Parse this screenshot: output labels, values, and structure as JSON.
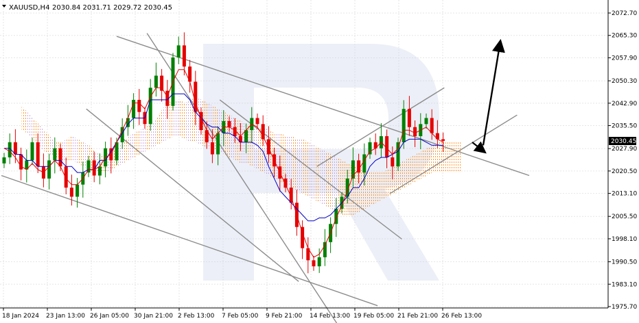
{
  "header": {
    "symbol": "XAUUSD,H4",
    "ohlc": "2030.84 2031.71 2029.72 2030.45"
  },
  "colors": {
    "bull": "#008000",
    "bear": "#e60000",
    "tenkan": "#e60000",
    "kijun": "#0000c8",
    "kumo_bull": "#ff8c1a",
    "kumo_bear": "#c8a0d8",
    "trendline": "#8c8c8c",
    "arrow": "#000000",
    "price_tag_bg": "#000000",
    "watermark": "#c8d2e8"
  },
  "chart_data": {
    "type": "candlestick",
    "symbol": "XAUUSD",
    "timeframe": "H4",
    "last_price": "2030.45",
    "y_ticks": [
      "2072.70",
      "2065.30",
      "2057.90",
      "2050.30",
      "2042.90",
      "2035.50",
      "2027.90",
      "2020.50",
      "2013.10",
      "2005.50",
      "1998.10",
      "1990.50",
      "1983.10",
      "1975.70"
    ],
    "ylim": [
      1975.7,
      2072.7
    ],
    "x_ticks": [
      "18 Jan 2024",
      "23 Jan 13:00",
      "26 Jan 05:00",
      "30 Jan 21:00",
      "2 Feb 13:00",
      "7 Feb 05:00",
      "9 Feb 21:00",
      "14 Feb 13:00",
      "19 Feb 05:00",
      "21 Feb 21:00",
      "26 Feb 13:00"
    ],
    "close_path": [
      2025,
      2030,
      2026,
      2021,
      2024,
      2030,
      2022,
      2018,
      2024,
      2028,
      2022,
      2015,
      2012,
      2016,
      2020,
      2024,
      2019,
      2022,
      2028,
      2024,
      2030,
      2035,
      2038,
      2044,
      2040,
      2036,
      2048,
      2052,
      2047,
      2042,
      2058,
      2062,
      2055,
      2050,
      2040,
      2034,
      2030,
      2026,
      2033,
      2037,
      2035,
      2032,
      2030,
      2034,
      2038,
      2036,
      2031,
      2026,
      2022,
      2018,
      2015,
      2010,
      2002,
      1995,
      1991,
      1989,
      1992,
      1997,
      2003,
      2008,
      2012,
      2018,
      2024,
      2020,
      2026,
      2030,
      2028,
      2032,
      2025,
      2022,
      2030,
      2041,
      2035,
      2032,
      2036,
      2038,
      2033,
      2031,
      2030.45
    ],
    "tenkan_path": [
      2028,
      2027,
      2025,
      2022,
      2021,
      2023,
      2021,
      2020,
      2022,
      2024,
      2022,
      2018,
      2016,
      2016,
      2018,
      2021,
      2021,
      2022,
      2025,
      2026,
      2030,
      2034,
      2038,
      2043,
      2043,
      2041,
      2045,
      2048,
      2048,
      2045,
      2050,
      2054,
      2054,
      2050,
      2043,
      2038,
      2034,
      2031,
      2033,
      2035,
      2035,
      2034,
      2032,
      2034,
      2036,
      2035,
      2032,
      2028,
      2024,
      2020,
      2016,
      2012,
      2006,
      2000,
      1995,
      1992,
      1993,
      1996,
      2000,
      2005,
      2009,
      2014,
      2019,
      2021,
      2024,
      2027,
      2028,
      2030,
      2028,
      2026,
      2028,
      2034,
      2034,
      2033,
      2034,
      2035,
      2033,
      2031,
      2030
    ],
    "kijun_path": [
      2028,
      2028,
      2026,
      2026,
      2024,
      2024,
      2022,
      2022,
      2022,
      2024,
      2024,
      2022,
      2022,
      2020,
      2020,
      2021,
      2021,
      2024,
      2024,
      2027,
      2030,
      2033,
      2036,
      2038,
      2038,
      2038,
      2044,
      2044,
      2044,
      2044,
      2046,
      2046,
      2046,
      2044,
      2040,
      2038,
      2036,
      2035,
      2035,
      2033,
      2033,
      2032,
      2030,
      2030,
      2030,
      2029,
      2027,
      2022,
      2018,
      2014,
      2012,
      2010,
      2008,
      2006,
      2004,
      2004,
      2005,
      2005,
      2006,
      2008,
      2010,
      2012,
      2015,
      2015,
      2018,
      2022,
      2024,
      2025,
      2025,
      2026,
      2027,
      2030,
      2031,
      2031,
      2031,
      2030,
      2029,
      2029,
      2029
    ],
    "kumo_upper_path": [
      2042,
      2040,
      2038,
      2036,
      2034,
      2032,
      2030,
      2030,
      2031,
      2032,
      2031,
      2030,
      2029,
      2027,
      2026,
      2026,
      2027,
      2028,
      2030,
      2032,
      2033,
      2034,
      2035,
      2036,
      2038,
      2041,
      2043,
      2044,
      2044,
      2043,
      2044,
      2045,
      2044,
      2043,
      2042,
      2041,
      2040,
      2039,
      2038,
      2037,
      2036,
      2036,
      2035,
      2035,
      2034,
      2033,
      2033,
      2032,
      2032,
      2031,
      2031,
      2030,
      2029,
      2028,
      2027,
      2026,
      2025,
      2024,
      2023,
      2022,
      2022,
      2021,
      2020,
      2020,
      2020,
      2021,
      2022,
      2023,
      2024,
      2025,
      2026,
      2027,
      2028,
      2029,
      2030,
      2030,
      2030,
      2030,
      2030
    ],
    "kumo_lower_path": [
      2034,
      2033,
      2031,
      2029,
      2027,
      2026,
      2025,
      2024,
      2024,
      2024,
      2023,
      2022,
      2021,
      2020,
      2020,
      2020,
      2021,
      2022,
      2023,
      2024,
      2025,
      2026,
      2027,
      2028,
      2029,
      2030,
      2031,
      2032,
      2032,
      2031,
      2030,
      2030,
      2029,
      2028,
      2028,
      2027,
      2026,
      2025,
      2024,
      2023,
      2023,
      2022,
      2021,
      2020,
      2019,
      2018,
      2017,
      2016,
      2015,
      2014,
      2013,
      2012,
      2011,
      2010,
      2009,
      2008,
      2007,
      2006,
      2006,
      2006,
      2007,
      2008,
      2009,
      2010,
      2011,
      2012,
      2013,
      2014,
      2015,
      2016,
      2017,
      2018,
      2019,
      2020,
      2020,
      2020,
      2020,
      2020,
      2020
    ],
    "trendlines": [
      {
        "x1": 0,
        "y1": 2019,
        "x2": 0.62,
        "y2": 1976
      },
      {
        "x1": 0.19,
        "y1": 2065,
        "x2": 0.87,
        "y2": 2019
      },
      {
        "x1": 0.24,
        "y1": 2066,
        "x2": 0.56,
        "y2": 1968
      },
      {
        "x1": 0.14,
        "y1": 2041,
        "x2": 0.49,
        "y2": 1984
      },
      {
        "x1": 0.36,
        "y1": 2044,
        "x2": 0.66,
        "y2": 1998
      },
      {
        "x1": 0.52,
        "y1": 2022,
        "x2": 0.73,
        "y2": 2048
      },
      {
        "x1": 0.64,
        "y1": 2013,
        "x2": 0.85,
        "y2": 2039
      }
    ],
    "forecast_arrow": {
      "from_index": 82,
      "from_price": 2029,
      "to_index": 88,
      "to_price": 2062
    }
  }
}
